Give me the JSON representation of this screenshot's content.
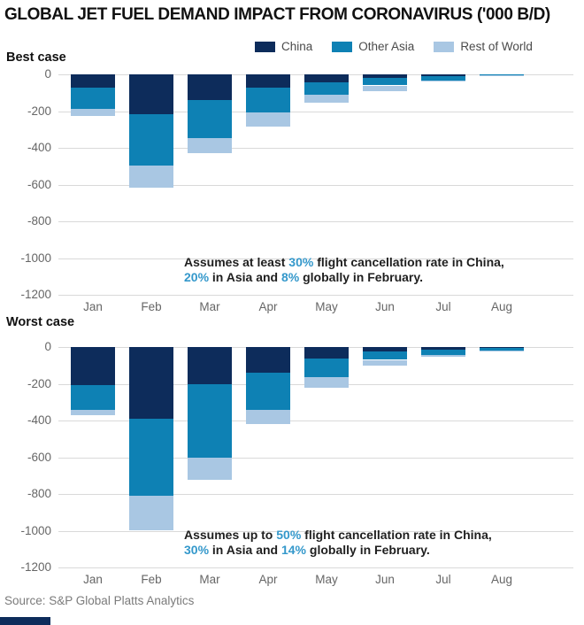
{
  "title": "GLOBAL JET FUEL DEMAND IMPACT FROM CORONAVIRUS ('000 B/D)",
  "source": "Source: S&P Global Platts Analytics",
  "colors": {
    "china": "#0d2c5b",
    "other_asia": "#0e81b4",
    "rest_of_world": "#a9c7e3",
    "accent_text": "#3498cb",
    "gridline": "#d9d9d9",
    "logo_bar": "#0d2c5b"
  },
  "legend": [
    {
      "label": "China",
      "color": "#0d2c5b"
    },
    {
      "label": "Other Asia",
      "color": "#0e81b4"
    },
    {
      "label": "Rest of World",
      "color": "#a9c7e3"
    }
  ],
  "chart_data": [
    {
      "type": "bar",
      "stacked": true,
      "title": "Best case",
      "categories": [
        "Jan",
        "Feb",
        "Mar",
        "Apr",
        "May",
        "Jun",
        "Jul",
        "Aug"
      ],
      "series": [
        {
          "name": "China",
          "color": "#0d2c5b",
          "values": [
            -70,
            -215,
            -140,
            -70,
            -45,
            -20,
            -10,
            0
          ]
        },
        {
          "name": "Other Asia",
          "color": "#0e81b4",
          "values": [
            -120,
            -280,
            -205,
            -135,
            -65,
            -40,
            -25,
            -5
          ]
        },
        {
          "name": "Rest of World",
          "color": "#a9c7e3",
          "values": [
            -35,
            -120,
            -85,
            -80,
            -45,
            -30,
            -5,
            -5
          ]
        }
      ],
      "ylim": [
        -1200,
        0
      ],
      "yticks": [
        0,
        -200,
        -400,
        -600,
        -800,
        -1000,
        -1200
      ],
      "grid": true,
      "legend_position": "top-right",
      "annotation_lines": [
        [
          {
            "t": "Assumes at least "
          },
          {
            "t": "30%",
            "accent": true
          },
          {
            "t": " flight cancellation rate in China,"
          }
        ],
        [
          {
            "t": "20%",
            "accent": true
          },
          {
            "t": " in Asia and "
          },
          {
            "t": "8%",
            "accent": true
          },
          {
            "t": " globally in February."
          }
        ]
      ]
    },
    {
      "type": "bar",
      "stacked": true,
      "title": "Worst case",
      "categories": [
        "Jan",
        "Feb",
        "Mar",
        "Apr",
        "May",
        "Jun",
        "Jul",
        "Aug"
      ],
      "series": [
        {
          "name": "China",
          "color": "#0d2c5b",
          "values": [
            -205,
            -390,
            -200,
            -140,
            -60,
            -25,
            -15,
            -5
          ]
        },
        {
          "name": "Other Asia",
          "color": "#0e81b4",
          "values": [
            -135,
            -420,
            -400,
            -200,
            -105,
            -45,
            -30,
            -15
          ]
        },
        {
          "name": "Rest of World",
          "color": "#a9c7e3",
          "values": [
            -30,
            -190,
            -125,
            -80,
            -55,
            -30,
            -10,
            -5
          ]
        }
      ],
      "ylim": [
        -1200,
        0
      ],
      "yticks": [
        0,
        -200,
        -400,
        -600,
        -800,
        -1000,
        -1200
      ],
      "grid": true,
      "legend_position": "top-right",
      "annotation_lines": [
        [
          {
            "t": "Assumes up to "
          },
          {
            "t": "50%",
            "accent": true
          },
          {
            "t": " flight cancellation rate in China,"
          }
        ],
        [
          {
            "t": "30%",
            "accent": true
          },
          {
            "t": " in Asia and "
          },
          {
            "t": "14%",
            "accent": true
          },
          {
            "t": " globally in February."
          }
        ]
      ]
    }
  ]
}
